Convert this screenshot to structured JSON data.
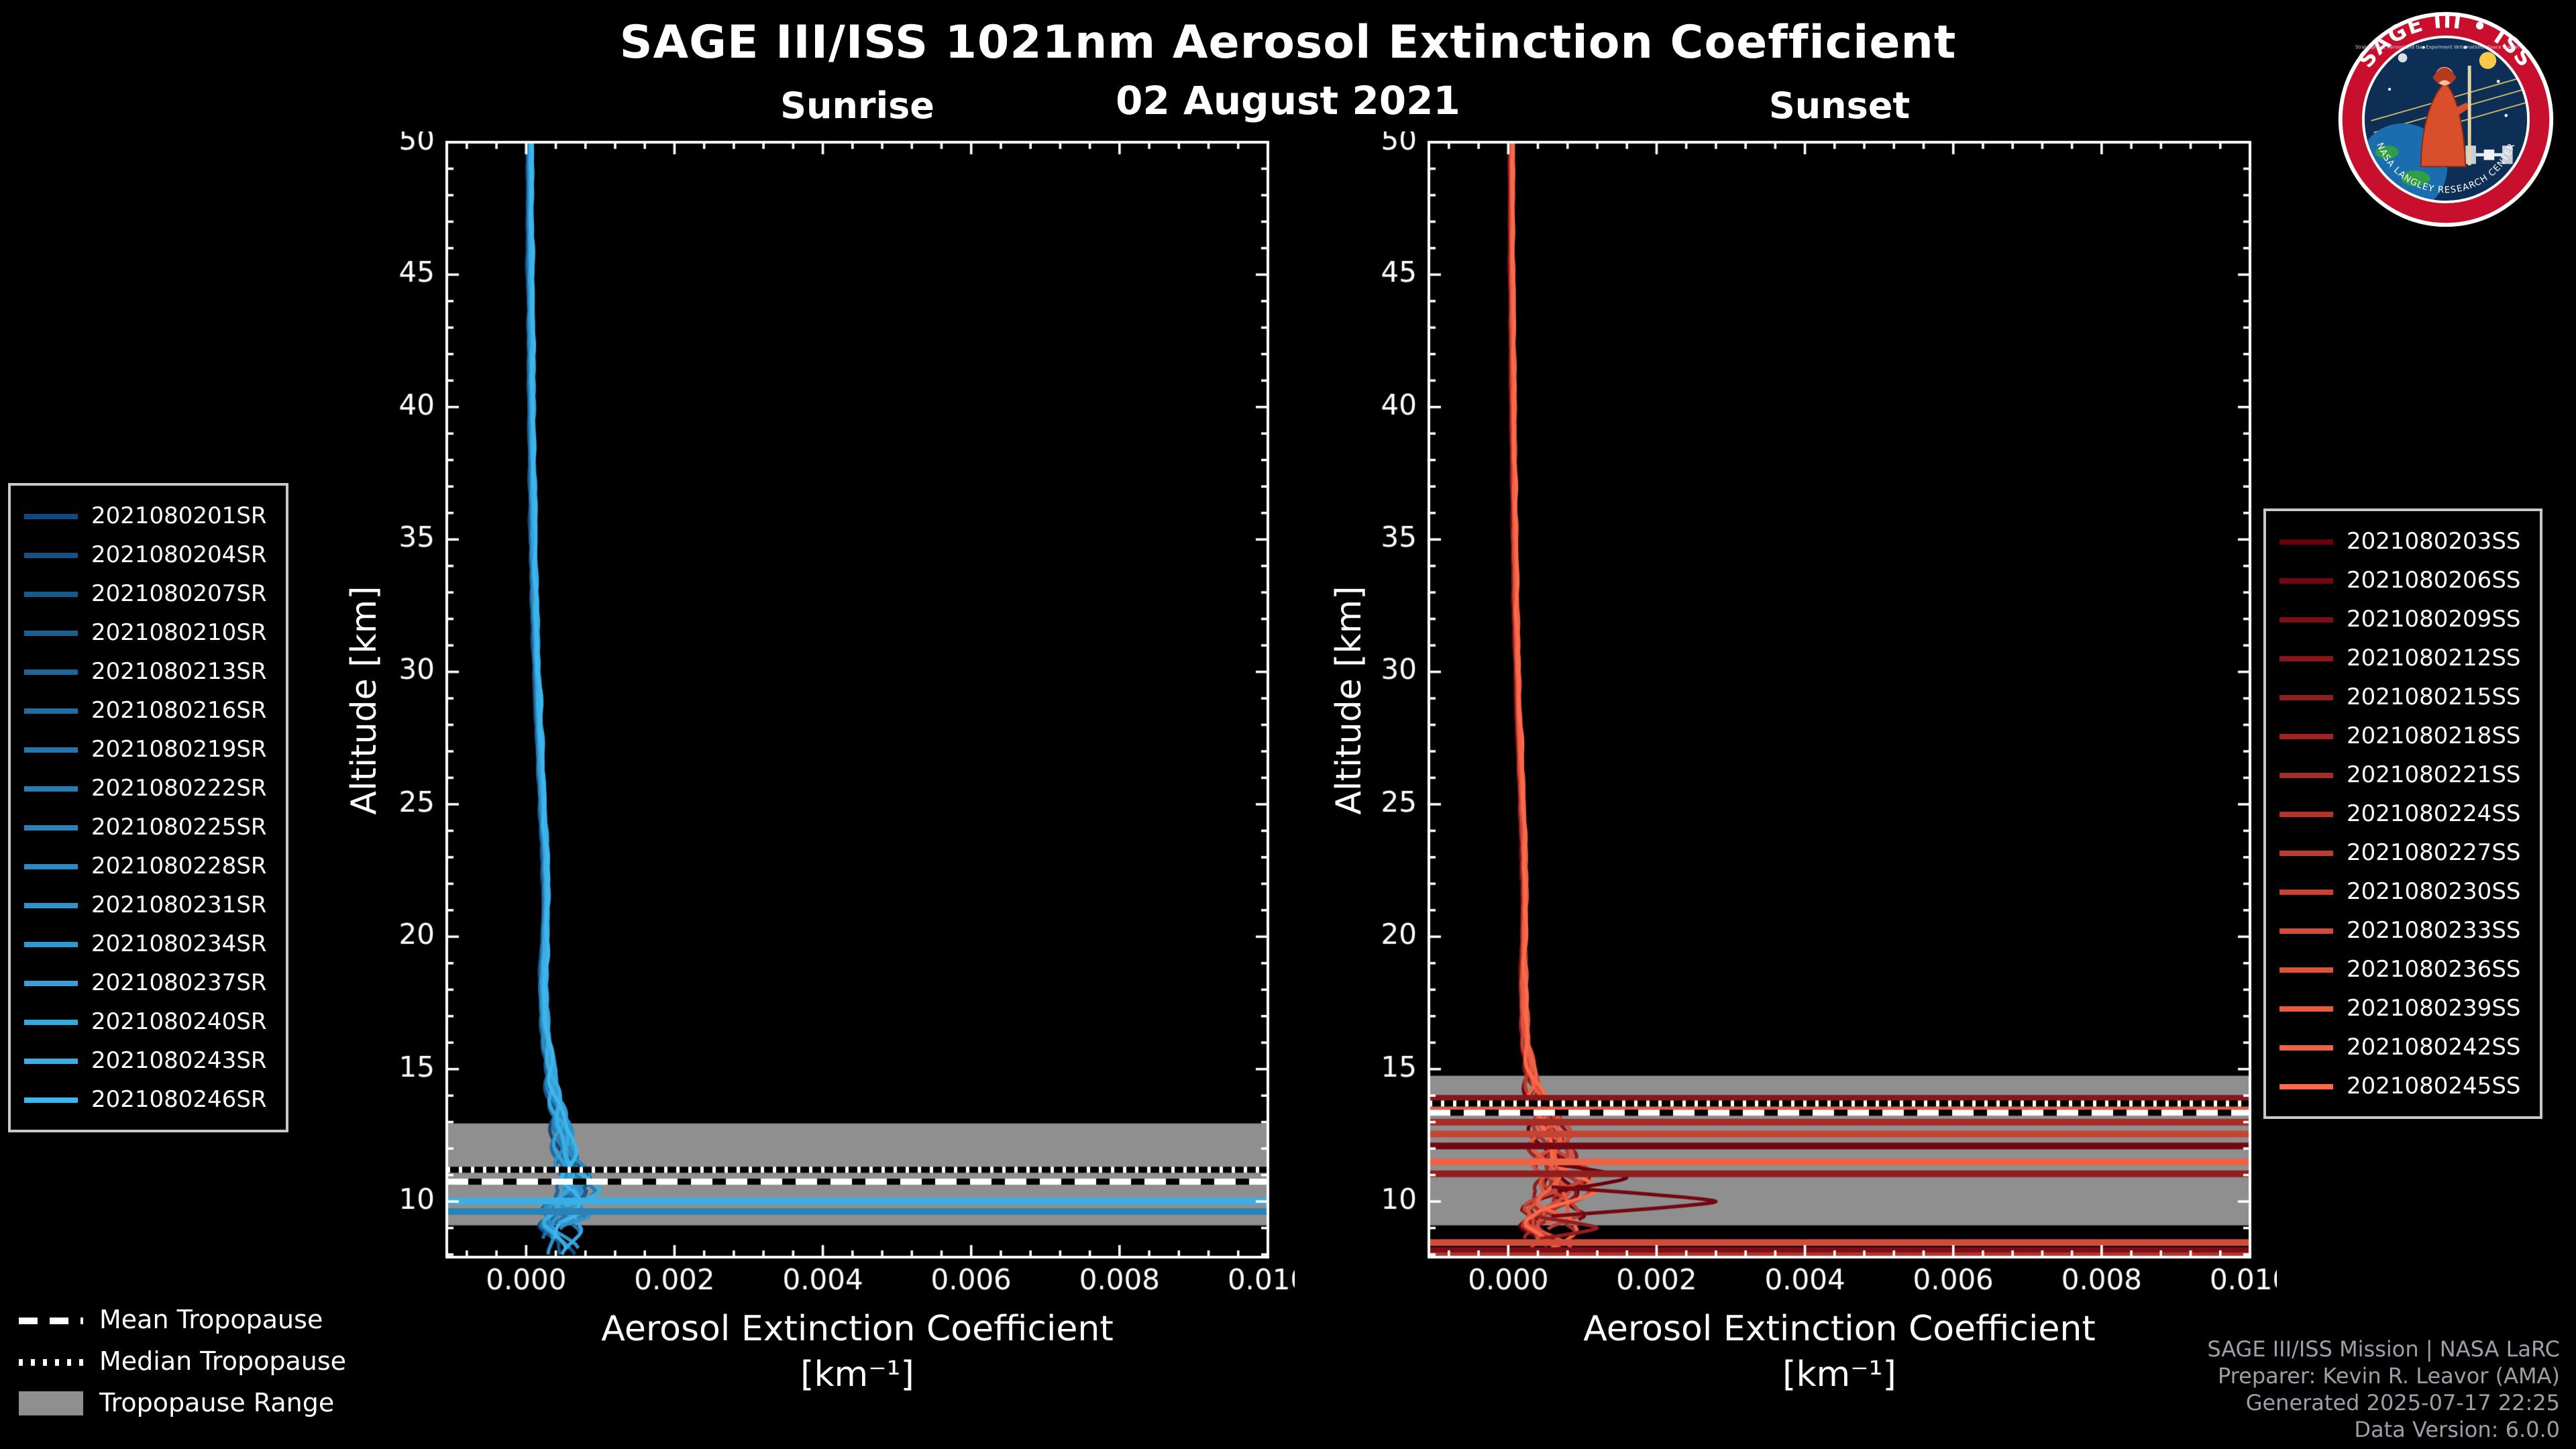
{
  "title": "SAGE III/ISS 1021nm Aerosol Extinction Coefficient",
  "date": "02 August 2021",
  "colors": {
    "background": "#000000",
    "text": "#ffffff",
    "band": "#8f8f8f",
    "credits": "#9aa0a6",
    "legend_border": "#c8c8c8",
    "logo_ring": "#c8102e",
    "logo_inner": "#0d2f55",
    "sunrise_start": "#13497c",
    "sunrise_end": "#3db6ee",
    "sunset_start": "#67000d",
    "sunset_end": "#fb6a4a"
  },
  "tropopause_legend": {
    "mean": "Mean Tropopause",
    "median": "Median Tropopause",
    "range": "Tropopause Range"
  },
  "credits": [
    "SAGE III/ISS Mission | NASA LaRC",
    "Preparer: Kevin R. Leavor (AMA)",
    "Generated 2025-07-17 22:25",
    "Data Version: 6.0.0"
  ],
  "logo": {
    "arc_title": "SAGE III • ISS",
    "sub_left": "Stratospheric Aerosol and Gas Experiment III",
    "sub_right": "International Space Station",
    "arc_bottom": "NASA LANGLEY RESEARCH CENTER"
  },
  "chart_data": [
    {
      "type": "line",
      "title": "Sunrise",
      "ylabel": "Altitude [km]",
      "xlabel": "Aerosol Extinction Coefficient",
      "xlabel_units": "[km⁻¹]",
      "xlim": [
        -0.00107,
        0.01
      ],
      "ylim": [
        7.9,
        50
      ],
      "xticks": [
        0,
        0.002,
        0.004,
        0.006,
        0.008,
        0.01
      ],
      "yticks": [
        10,
        15,
        20,
        25,
        30,
        35,
        40,
        45,
        50
      ],
      "color_start": "#13497c",
      "color_end": "#3db6ee",
      "series": [
        "2021080201SR",
        "2021080204SR",
        "2021080207SR",
        "2021080210SR",
        "2021080213SR",
        "2021080216SR",
        "2021080219SR",
        "2021080222SR",
        "2021080225SR",
        "2021080228SR",
        "2021080231SR",
        "2021080234SR",
        "2021080237SR",
        "2021080240SR",
        "2021080243SR",
        "2021080246SR"
      ],
      "tropopause": {
        "mean": 10.75,
        "median": 11.2,
        "range": [
          9.1,
          12.95
        ]
      },
      "profile": {
        "altitudes": [
          50,
          48,
          46,
          44,
          42,
          40,
          38,
          36,
          34,
          32,
          30,
          28,
          26,
          24,
          23,
          22,
          21,
          20,
          19,
          18,
          17,
          16,
          15,
          14.5,
          14,
          13.5,
          13,
          12.5,
          12,
          11.5,
          11,
          10.7,
          10.4,
          10.1,
          9.9,
          9.7,
          9.5,
          9.3,
          9.1,
          8.9,
          8.6,
          8.3,
          7.9
        ],
        "values": [
          5e-05,
          5.2e-05,
          5.5e-05,
          6e-05,
          6.5e-05,
          7e-05,
          8e-05,
          9e-05,
          0.0001,
          0.00012,
          0.00014,
          0.00017,
          0.0002,
          0.00024,
          0.00026,
          0.00027,
          0.000265,
          0.00025,
          0.00023,
          0.000225,
          0.00024,
          0.00028,
          0.00034,
          0.00036,
          0.00039,
          0.00043,
          0.00047,
          0.0005,
          0.00052,
          0.00055,
          0.0006,
          0.00063,
          0.00066,
          0.00058,
          0.0005,
          0.00044,
          0.00048,
          0.00041,
          0.00037,
          0.0004,
          0.00042,
          0.00046,
          0.0005
        ]
      },
      "noise_amp": {
        "altitudes": [
          50,
          20,
          16,
          14,
          12,
          10.5,
          9.5,
          7.9
        ],
        "values": [
          2e-05,
          3e-05,
          5e-05,
          9e-05,
          0.00016,
          0.00028,
          0.00032,
          0.00022
        ]
      },
      "fan": 5e-05,
      "offscale_lines": [
        {
          "altitude": 10.02,
          "series_index": 14
        },
        {
          "altitude": 9.62,
          "series_index": 8
        }
      ],
      "spikes": [
        {
          "altitude": 9.45,
          "peak": 0.00085,
          "half_width": 0.35,
          "series_index": 10
        }
      ]
    },
    {
      "type": "line",
      "title": "Sunset",
      "ylabel": "Altitude [km]",
      "xlabel": "Aerosol Extinction Coefficient",
      "xlabel_units": "[km⁻¹]",
      "xlim": [
        -0.00107,
        0.01
      ],
      "ylim": [
        7.9,
        50
      ],
      "xticks": [
        0,
        0.002,
        0.004,
        0.006,
        0.008,
        0.01
      ],
      "yticks": [
        10,
        15,
        20,
        25,
        30,
        35,
        40,
        45,
        50
      ],
      "color_start": "#67000d",
      "color_end": "#fb6a4a",
      "series": [
        "2021080203SS",
        "2021080206SS",
        "2021080209SS",
        "2021080212SS",
        "2021080215SS",
        "2021080218SS",
        "2021080221SS",
        "2021080224SS",
        "2021080227SS",
        "2021080230SS",
        "2021080233SS",
        "2021080236SS",
        "2021080239SS",
        "2021080242SS",
        "2021080245SS"
      ],
      "tropopause": {
        "mean": 13.35,
        "median": 13.7,
        "range": [
          9.1,
          14.75
        ]
      },
      "profile": {
        "altitudes": [
          50,
          48,
          46,
          44,
          42,
          40,
          38,
          36,
          34,
          32,
          30,
          28,
          26,
          24,
          23,
          22,
          21,
          20,
          19,
          18,
          17,
          16,
          15,
          14.5,
          14,
          13.5,
          13,
          12.5,
          12,
          11.5,
          11,
          10.7,
          10.4,
          10.1,
          9.9,
          9.7,
          9.5,
          9.3,
          9.1,
          8.9,
          8.6,
          8.3,
          7.9
        ],
        "values": [
          4e-05,
          4.2e-05,
          4.5e-05,
          5e-05,
          5.5e-05,
          6e-05,
          7e-05,
          8e-05,
          9e-05,
          0.0001,
          0.00012,
          0.00014,
          0.00017,
          0.0002,
          0.00021,
          0.00022,
          0.000215,
          0.00021,
          0.0002,
          0.0002,
          0.00021,
          0.00024,
          0.0003,
          0.00034,
          0.0004,
          0.00048,
          0.00055,
          0.0006,
          0.00062,
          0.00064,
          0.00066,
          0.00068,
          0.0007,
          0.00062,
          0.00055,
          0.0005,
          0.00055,
          0.00048,
          0.00042,
          0.00045,
          0.00048,
          0.00052,
          0.00056
        ]
      },
      "noise_amp": {
        "altitudes": [
          50,
          20,
          16,
          14.5,
          13,
          11,
          9.5,
          7.9
        ],
        "values": [
          1.5e-05,
          2.5e-05,
          5e-05,
          0.0001,
          0.00025,
          0.0004,
          0.00045,
          0.0003
        ]
      },
      "fan": 4e-05,
      "offscale_lines": [
        {
          "altitude": 13.9,
          "series_index": 3
        },
        {
          "altitude": 13.45,
          "series_index": 12
        },
        {
          "altitude": 13.0,
          "series_index": 6
        },
        {
          "altitude": 12.55,
          "series_index": 9
        },
        {
          "altitude": 12.1,
          "series_index": 1
        },
        {
          "altitude": 11.5,
          "series_index": 13
        },
        {
          "altitude": 11.05,
          "series_index": 4
        },
        {
          "altitude": 8.45,
          "series_index": 10
        },
        {
          "altitude": 8.15,
          "series_index": 2
        },
        {
          "altitude": 7.95,
          "series_index": 7
        }
      ],
      "spikes": [
        {
          "altitude": 10.9,
          "peak": 0.0016,
          "half_width": 0.5,
          "series_index": 0
        },
        {
          "altitude": 10.0,
          "peak": 0.0028,
          "half_width": 0.55,
          "series_index": 1
        },
        {
          "altitude": 9.0,
          "peak": 0.0012,
          "half_width": 0.4,
          "series_index": 4
        }
      ]
    }
  ]
}
